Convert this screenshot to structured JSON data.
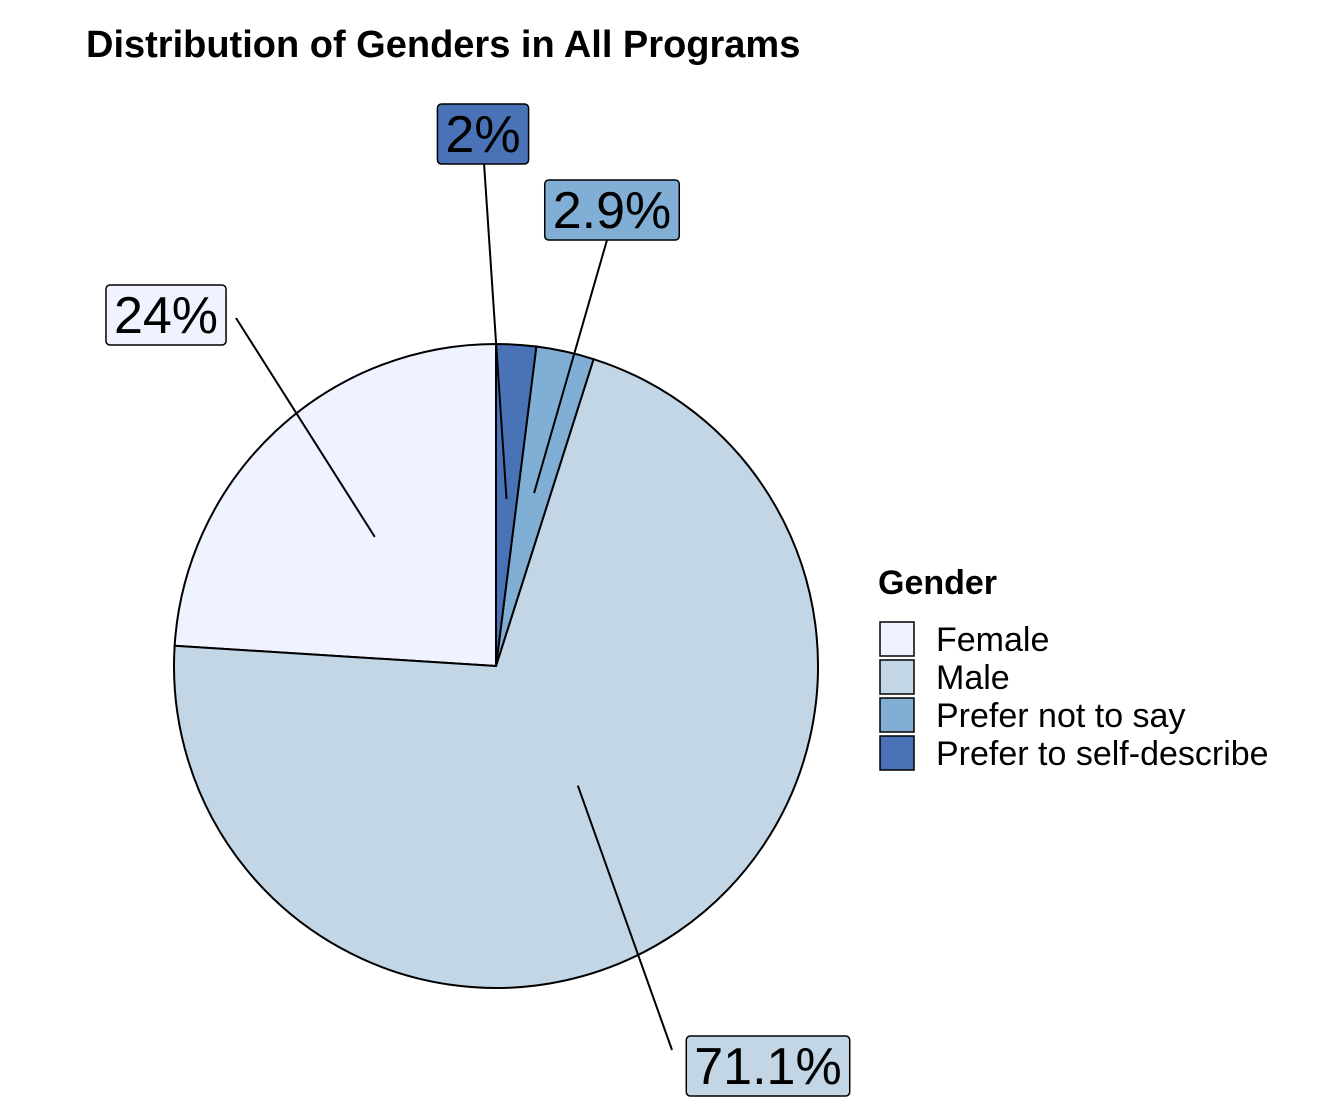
{
  "chart_data": {
    "type": "pie",
    "title": "Distribution of Genders in All Programs",
    "legend_title": "Gender",
    "legend_position": "right",
    "direction": "counterclockwise-from-top",
    "slices": [
      {
        "name": "Female",
        "value": 24.0,
        "label": "24%",
        "color": "#eff3ff"
      },
      {
        "name": "Male",
        "value": 71.1,
        "label": "71.1%",
        "color": "#c2d6e6"
      },
      {
        "name": "Prefer not to say",
        "value": 2.9,
        "label": "2.9%",
        "color": "#80aed4"
      },
      {
        "name": "Prefer to self-describe",
        "value": 2.0,
        "label": "2%",
        "color": "#4a72b7"
      }
    ]
  }
}
